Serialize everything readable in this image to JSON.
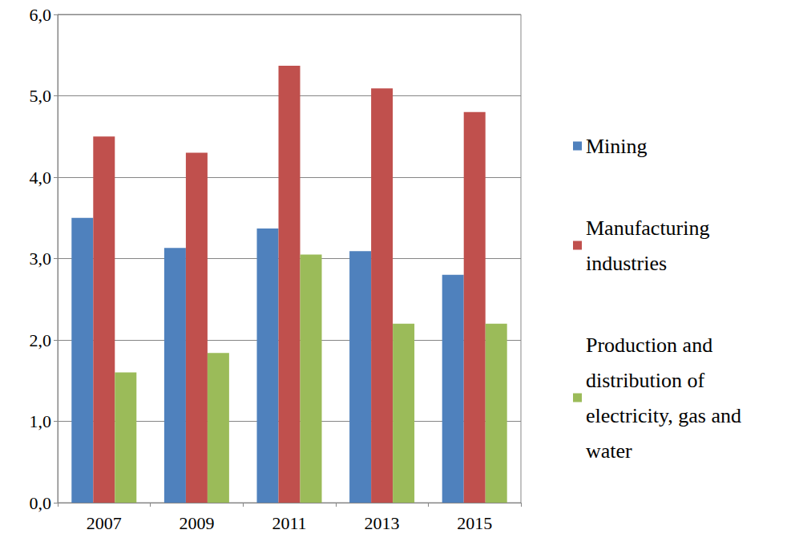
{
  "chart_data": {
    "type": "bar",
    "categories": [
      "2007",
      "2009",
      "2011",
      "2013",
      "2015"
    ],
    "series": [
      {
        "name": "Mining",
        "color": "#4f81bd",
        "values": [
          3.5,
          3.13,
          3.37,
          3.09,
          2.8
        ]
      },
      {
        "name": "Manufacturing industries",
        "color": "#c0504d",
        "values": [
          4.5,
          4.3,
          5.37,
          5.09,
          4.8
        ]
      },
      {
        "name": "Production and distribution of electricity, gas and water",
        "color": "#9bbb59",
        "values": [
          1.6,
          1.84,
          3.05,
          2.2,
          2.2
        ]
      }
    ],
    "ylim": [
      0,
      6
    ],
    "yticks": [
      {
        "value": 0,
        "label": "0,0"
      },
      {
        "value": 1,
        "label": "1,0"
      },
      {
        "value": 2,
        "label": "2,0"
      },
      {
        "value": 3,
        "label": "3,0"
      },
      {
        "value": 4,
        "label": "4,0"
      },
      {
        "value": 5,
        "label": "5,0"
      },
      {
        "value": 6,
        "label": "6,0"
      }
    ],
    "grid": true,
    "legend": "right"
  }
}
